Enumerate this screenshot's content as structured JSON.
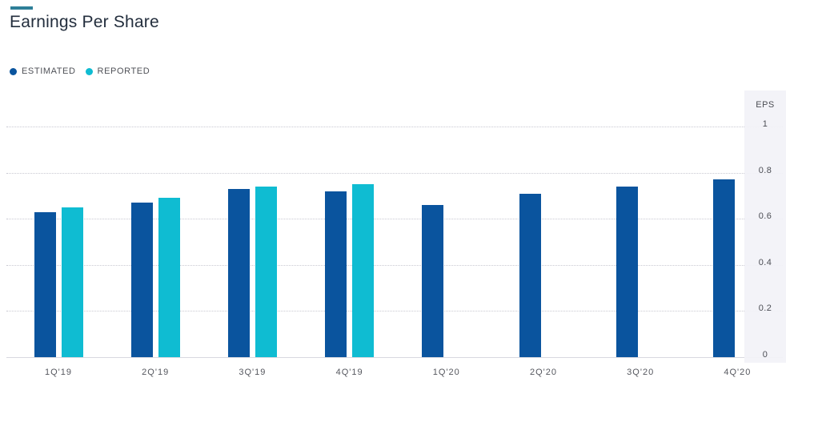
{
  "header": {
    "title": "Earnings Per Share",
    "accent_color": "#2e7f98"
  },
  "legend": [
    {
      "label": "ESTIMATED",
      "color": "#0a549e"
    },
    {
      "label": "REPORTED",
      "color": "#0fbcd2"
    }
  ],
  "colors": {
    "estimated_bar": "#0a549e",
    "reported_bar": "#0fbcd2",
    "gridline": "#c9c9d2",
    "axis_panel_bg": "#f2f2f7",
    "text_gray": "#55575e"
  },
  "chart_data": {
    "type": "bar",
    "title": "Earnings Per Share",
    "categories": [
      "1Q'19",
      "2Q'19",
      "3Q'19",
      "4Q'19",
      "1Q'20",
      "2Q'20",
      "3Q'20",
      "4Q'20"
    ],
    "series": [
      {
        "name": "ESTIMATED",
        "color": "#0a549e",
        "values": [
          0.63,
          0.67,
          0.73,
          0.72,
          0.66,
          0.71,
          0.74,
          0.77
        ]
      },
      {
        "name": "REPORTED",
        "color": "#0fbcd2",
        "values": [
          0.65,
          0.69,
          0.74,
          0.75,
          null,
          null,
          null,
          null
        ]
      }
    ],
    "xlabel": "",
    "ylabel": "EPS",
    "yaxis": {
      "label": "EPS",
      "ticks": [
        0,
        0.2,
        0.4,
        0.6,
        0.8,
        1
      ],
      "tick_labels": [
        "0",
        "0.2",
        "0.4",
        "0.6",
        "0.8",
        "1"
      ]
    },
    "ylim": [
      0,
      1.16
    ],
    "grid": "horizontal-dotted",
    "legend_position": "top-left",
    "axis_side": "right"
  }
}
